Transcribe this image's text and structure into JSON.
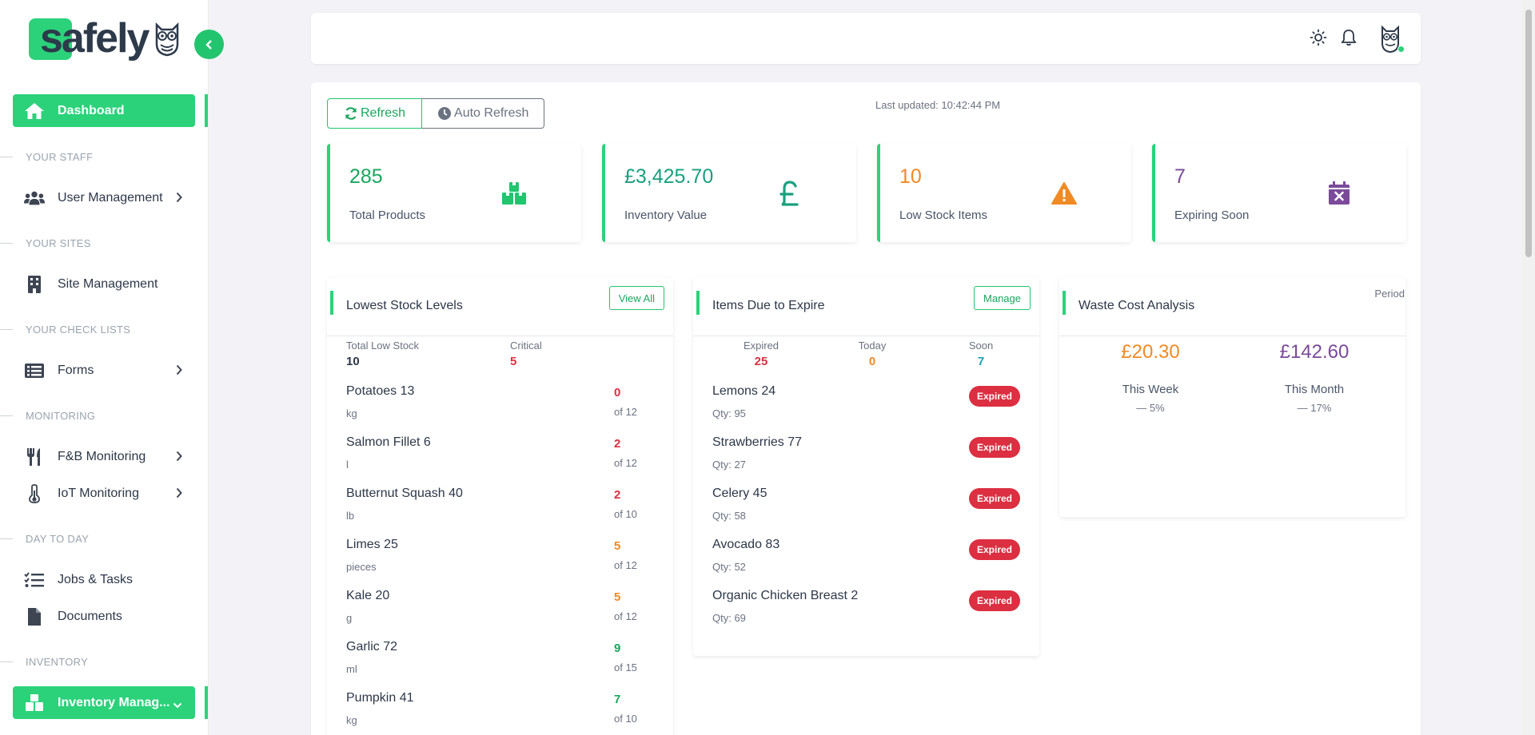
{
  "brand": {
    "name": "safely"
  },
  "sidebar": {
    "dashboard": "Dashboard",
    "sections": {
      "staff": "YOUR STAFF",
      "sites": "YOUR SITES",
      "checklists": "YOUR CHECK LISTS",
      "monitoring": "MONITORING",
      "daytoday": "DAY TO DAY",
      "inventory": "INVENTORY"
    },
    "items": {
      "user_mgmt": "User Management",
      "site_mgmt": "Site Management",
      "forms": "Forms",
      "fb": "F&B Monitoring",
      "iot": "IoT Monitoring",
      "jobs": "Jobs & Tasks",
      "docs": "Documents",
      "inventory": "Inventory Manag..."
    }
  },
  "toolbar": {
    "refresh": "Refresh",
    "auto_refresh": "Auto Refresh",
    "last_updated": "Last updated: 10:42:44 PM"
  },
  "stats": [
    {
      "value": "285",
      "label": "Total Products",
      "color": "#1aa65d",
      "icon": "boxes-icon"
    },
    {
      "value": "£3,425.70",
      "label": "Inventory Value",
      "color": "#19a07f",
      "icon": "pound-icon"
    },
    {
      "value": "10",
      "label": "Low Stock Items",
      "color": "#f08a24",
      "icon": "warning-icon"
    },
    {
      "value": "7",
      "label": "Expiring Soon",
      "color": "#7b4a9a",
      "icon": "calendar-x-icon"
    }
  ],
  "lowest_stock": {
    "title": "Lowest Stock Levels",
    "button": "View All",
    "total_label": "Total Low Stock",
    "total": "10",
    "critical_label": "Critical",
    "critical": "5",
    "items": [
      {
        "name": "Potatoes 13",
        "unit": "kg",
        "qty": "0",
        "of": "of 12",
        "level": "red"
      },
      {
        "name": "Salmon Fillet 6",
        "unit": "l",
        "qty": "2",
        "of": "of 12",
        "level": "red"
      },
      {
        "name": "Butternut Squash 40",
        "unit": "lb",
        "qty": "2",
        "of": "of 10",
        "level": "red"
      },
      {
        "name": "Limes 25",
        "unit": "pieces",
        "qty": "5",
        "of": "of 12",
        "level": "orange"
      },
      {
        "name": "Kale 20",
        "unit": "g",
        "qty": "5",
        "of": "of 12",
        "level": "orange"
      },
      {
        "name": "Garlic 72",
        "unit": "ml",
        "qty": "9",
        "of": "of 15",
        "level": "green"
      },
      {
        "name": "Pumpkin 41",
        "unit": "kg",
        "qty": "7",
        "of": "of 10",
        "level": "green"
      }
    ]
  },
  "expiring": {
    "title": "Items Due to Expire",
    "button": "Manage",
    "expired_label": "Expired",
    "expired": "25",
    "today_label": "Today",
    "today": "0",
    "soon_label": "Soon",
    "soon": "7",
    "items": [
      {
        "name": "Lemons 24",
        "qty": "Qty: 95",
        "badge": "Expired"
      },
      {
        "name": "Strawberries 77",
        "qty": "Qty: 27",
        "badge": "Expired"
      },
      {
        "name": "Celery 45",
        "qty": "Qty: 58",
        "badge": "Expired"
      },
      {
        "name": "Avocado 83",
        "qty": "Qty: 52",
        "badge": "Expired"
      },
      {
        "name": "Organic Chicken Breast 2",
        "qty": "Qty: 69",
        "badge": "Expired"
      }
    ]
  },
  "waste": {
    "title": "Waste Cost Analysis",
    "period": "Period",
    "week_value": "£20.30",
    "week_label": "This Week",
    "week_trend": "5%",
    "month_value": "£142.60",
    "month_label": "This Month",
    "month_trend": "17%"
  }
}
